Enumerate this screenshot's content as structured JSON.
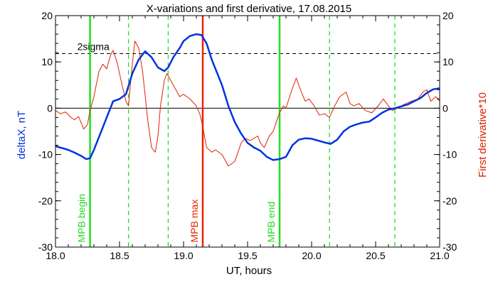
{
  "chart_data": {
    "type": "line",
    "title": "X-variations and first derivative, 17.08.2015",
    "xlabel": "UT, hours",
    "ylabel_left": "deltaX, nT",
    "ylabel_right": "First derivative*10",
    "xlim": [
      18.0,
      21.0
    ],
    "ylim": [
      -30,
      20
    ],
    "x_ticks": [
      "18.0",
      "18.5",
      "19.0",
      "19.5",
      "20.0",
      "20.5",
      "21.0"
    ],
    "y_ticks": [
      "-30",
      "-20",
      "-10",
      "0",
      "10",
      "20"
    ],
    "sigma_label": "2sigma",
    "sigma_value": 11.8,
    "colors": {
      "deltaX": "#0033dd",
      "derivative": "#dd2200",
      "mpb": "#22dd22",
      "mpb_max": "#ee2200"
    },
    "series": [
      {
        "name": "deltaX",
        "x": [
          18.0,
          18.05,
          18.1,
          18.15,
          18.2,
          18.24,
          18.27,
          18.3,
          18.35,
          18.4,
          18.45,
          18.5,
          18.55,
          18.6,
          18.65,
          18.7,
          18.75,
          18.8,
          18.85,
          18.88,
          18.92,
          18.97,
          19.0,
          19.05,
          19.1,
          19.14,
          19.18,
          19.22,
          19.3,
          19.35,
          19.4,
          19.45,
          19.5,
          19.55,
          19.6,
          19.65,
          19.7,
          19.75,
          19.8,
          19.85,
          19.9,
          19.95,
          20.0,
          20.05,
          20.1,
          20.15,
          20.2,
          20.25,
          20.3,
          20.35,
          20.4,
          20.45,
          20.5,
          20.55,
          20.6,
          20.65,
          20.7,
          20.75,
          20.8,
          20.85,
          20.9,
          20.95,
          21.0
        ],
        "y": [
          -8.2,
          -8.6,
          -9.0,
          -9.6,
          -10.3,
          -11.0,
          -10.8,
          -9.0,
          -5.5,
          -2.0,
          1.5,
          2.0,
          3.0,
          7.5,
          10.5,
          12.3,
          11.0,
          8.8,
          8.0,
          8.8,
          11.0,
          13.0,
          14.5,
          15.6,
          16.0,
          15.8,
          14.0,
          10.5,
          5.0,
          0.5,
          -3.0,
          -5.5,
          -7.5,
          -8.5,
          -9.2,
          -10.5,
          -11.2,
          -11.0,
          -10.5,
          -8.0,
          -6.8,
          -6.5,
          -6.6,
          -7.0,
          -7.4,
          -7.7,
          -6.8,
          -5.0,
          -4.0,
          -3.5,
          -3.1,
          -2.9,
          -2.0,
          -1.0,
          -0.3,
          0.0,
          0.4,
          0.8,
          1.5,
          2.2,
          3.3,
          4.1,
          4.3
        ]
      },
      {
        "name": "First derivative*10",
        "x": [
          18.0,
          18.04,
          18.08,
          18.12,
          18.15,
          18.18,
          18.22,
          18.25,
          18.27,
          18.3,
          18.34,
          18.37,
          18.4,
          18.43,
          18.45,
          18.48,
          18.52,
          18.55,
          18.57,
          18.6,
          18.62,
          18.65,
          18.68,
          18.72,
          18.75,
          18.78,
          18.8,
          18.82,
          18.85,
          18.87,
          18.9,
          18.93,
          18.97,
          19.0,
          19.05,
          19.1,
          19.13,
          19.15,
          19.18,
          19.22,
          19.25,
          19.3,
          19.35,
          19.4,
          19.45,
          19.48,
          19.52,
          19.55,
          19.58,
          19.6,
          19.63,
          19.67,
          19.7,
          19.73,
          19.75,
          19.78,
          19.8,
          19.84,
          19.88,
          19.92,
          19.95,
          19.98,
          20.02,
          20.06,
          20.1,
          20.14,
          20.18,
          20.22,
          20.27,
          20.3,
          20.33,
          20.37,
          20.42,
          20.47,
          20.52,
          20.56,
          20.6,
          20.63,
          20.67,
          20.72,
          20.78,
          20.83,
          20.87,
          20.9,
          20.93,
          20.97,
          21.0
        ],
        "y": [
          -0.5,
          -1.2,
          -0.8,
          -2.0,
          -2.5,
          -1.8,
          -4.5,
          -3.5,
          -0.5,
          2.5,
          8.0,
          9.5,
          8.5,
          11.5,
          12.5,
          10.0,
          5.0,
          1.5,
          0.5,
          9.5,
          14.5,
          13.0,
          8.0,
          -2.5,
          -8.5,
          -9.5,
          -6.0,
          0.5,
          6.0,
          7.5,
          6.0,
          4.5,
          2.5,
          3.0,
          2.0,
          0.5,
          -1.5,
          -4.0,
          -8.5,
          -9.5,
          -9.0,
          -10.0,
          -12.5,
          -11.5,
          -7.5,
          -6.5,
          -7.0,
          -6.5,
          -6.0,
          -7.5,
          -8.5,
          -6.0,
          -5.0,
          -2.5,
          -1.0,
          0.5,
          0.0,
          3.5,
          6.5,
          3.5,
          1.5,
          2.0,
          0.5,
          -1.5,
          -1.2,
          -2.0,
          0.5,
          2.5,
          3.5,
          1.0,
          0.5,
          1.0,
          -0.5,
          -1.0,
          0.5,
          2.0,
          0.5,
          -0.5,
          0.0,
          0.8,
          1.5,
          2.0,
          3.5,
          4.0,
          1.5,
          2.5,
          1.5
        ]
      }
    ],
    "markers": [
      {
        "x": 18.27,
        "label": "MPB begin",
        "color": "#22dd22"
      },
      {
        "x": 19.15,
        "label": "MPB max",
        "color": "#ee2200"
      },
      {
        "x": 19.75,
        "label": "MPB end",
        "color": "#22dd22"
      }
    ],
    "dashed_markers": [
      18.57,
      18.88,
      20.14,
      20.65
    ]
  }
}
